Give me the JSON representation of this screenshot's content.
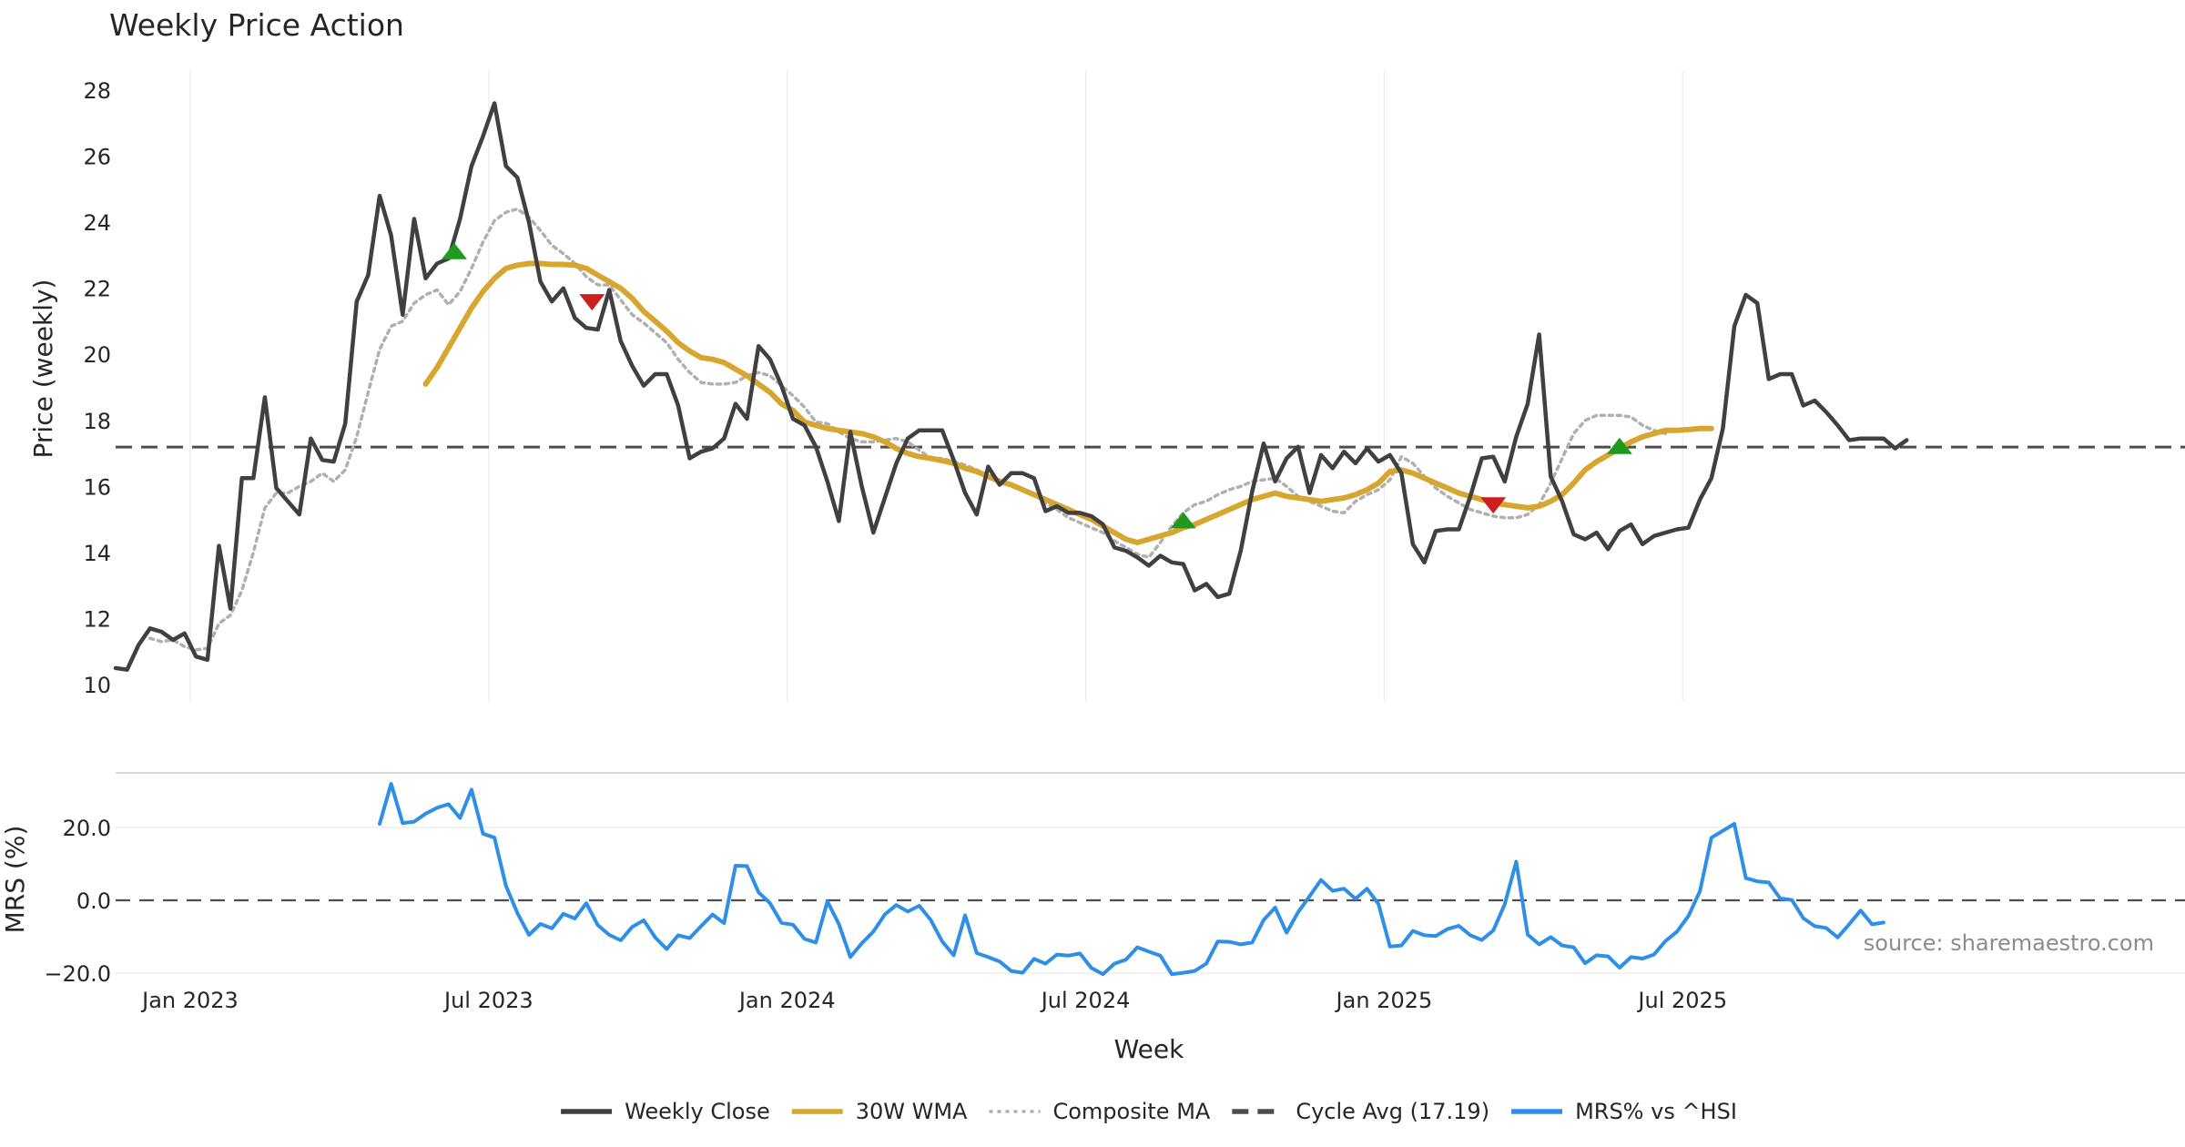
{
  "chart_data": {
    "type": "line",
    "title": "Weekly Price Action",
    "xlabel": "Week",
    "source": "source: sharemaestro.com",
    "x_ticks": [
      "Jan 2023",
      "Jul 2023",
      "Jan 2024",
      "Jul 2024",
      "Jan 2025",
      "Jul 2025"
    ],
    "price_panel": {
      "ylabel": "Price (weekly)",
      "ylim": [
        9.5,
        28.8
      ],
      "y_ticks": [
        10,
        12,
        14,
        16,
        18,
        20,
        22,
        24,
        26,
        28
      ],
      "grid": true
    },
    "mrs_panel": {
      "ylabel": "MRS (%)",
      "ylim": [
        -22,
        36
      ],
      "y_ticks": [
        20,
        0,
        -20
      ],
      "y_tick_labels": [
        "20.0",
        "0.0",
        "−20.0"
      ],
      "zero_line": 0
    },
    "legend": [
      {
        "label": "Weekly Close",
        "color": "#404040",
        "style": "solid"
      },
      {
        "label": "30W WMA",
        "color": "#d6a62e",
        "style": "solid"
      },
      {
        "label": "Composite MA",
        "color": "#b0b0b0",
        "style": "dotted"
      },
      {
        "label": "Cycle Avg (17.19)",
        "color": "#4d4d4d",
        "style": "dashed"
      },
      {
        "label": "MRS% vs ^HSI",
        "color": "#2f8fe6",
        "style": "solid"
      }
    ],
    "cycle_avg": 17.19,
    "colors": {
      "close": "#404040",
      "wma": "#d6a62e",
      "composite": "#b0b0b0",
      "cycle": "#4d4d4d",
      "mrs": "#2f8fe6",
      "buy": "#1f9a1f",
      "sell": "#cc1f1f"
    },
    "series": [
      {
        "name": "Weekly Close",
        "start_week": 0,
        "values": [
          10.5,
          10.45,
          11.2,
          11.7,
          11.6,
          11.35,
          11.55,
          10.85,
          10.75,
          14.2,
          12.3,
          16.25,
          16.25,
          18.7,
          15.95,
          15.55,
          15.15,
          17.45,
          16.8,
          16.75,
          17.9,
          21.6,
          22.4,
          24.8,
          23.6,
          21.2,
          24.1,
          22.3,
          22.75,
          22.9,
          24.1,
          25.7,
          26.6,
          27.6,
          25.7,
          25.35,
          24.0,
          22.2,
          21.6,
          22.0,
          21.1,
          20.8,
          20.75,
          21.95,
          20.4,
          19.65,
          19.05,
          19.4,
          19.4,
          18.45,
          16.85,
          17.05,
          17.15,
          17.45,
          18.5,
          18.05,
          20.25,
          19.85,
          19.05,
          18.05,
          17.85,
          17.2,
          16.15,
          14.95,
          17.65,
          16.0,
          14.6,
          15.65,
          16.7,
          17.45,
          17.7,
          17.7,
          17.7,
          16.8,
          15.8,
          15.15,
          16.6,
          16.05,
          16.4,
          16.4,
          16.25,
          15.25,
          15.4,
          15.2,
          15.2,
          15.1,
          14.85,
          14.15,
          14.05,
          13.85,
          13.6,
          13.9,
          13.7,
          13.65,
          12.85,
          13.05,
          12.65,
          12.75,
          14.05,
          15.85,
          17.3,
          16.15,
          16.85,
          17.2,
          15.8,
          16.95,
          16.55,
          17.05,
          16.7,
          17.15,
          16.75,
          16.95,
          16.4,
          14.25,
          13.7,
          14.65,
          14.7,
          14.7,
          15.7,
          16.85,
          16.9,
          16.15,
          17.5,
          18.5,
          20.6,
          16.3,
          15.55,
          14.55,
          14.4,
          14.6,
          14.1,
          14.65,
          14.85,
          14.25,
          14.5,
          14.6,
          14.7,
          14.75,
          15.6,
          16.25,
          17.75,
          20.85,
          21.8,
          21.55,
          19.25,
          19.4,
          19.4,
          18.45,
          18.6,
          18.25,
          17.85,
          17.4,
          17.45,
          17.45,
          17.45,
          17.15,
          17.4
        ]
      },
      {
        "name": "30W WMA",
        "start_week": 27,
        "values": [
          19.1,
          19.6,
          20.2,
          20.8,
          21.4,
          21.9,
          22.3,
          22.6,
          22.7,
          22.75,
          22.75,
          22.72,
          22.72,
          22.7,
          22.6,
          22.4,
          22.2,
          22.0,
          21.7,
          21.3,
          21.0,
          20.7,
          20.35,
          20.1,
          19.9,
          19.85,
          19.75,
          19.55,
          19.35,
          19.1,
          18.85,
          18.5,
          18.3,
          17.95,
          17.85,
          17.75,
          17.7,
          17.65,
          17.6,
          17.5,
          17.35,
          17.15,
          17.0,
          16.9,
          16.85,
          16.78,
          16.7,
          16.55,
          16.45,
          16.3,
          16.15,
          16.05,
          15.9,
          15.75,
          15.6,
          15.45,
          15.3,
          15.15,
          15.0,
          14.8,
          14.6,
          14.4,
          14.3,
          14.4,
          14.5,
          14.6,
          14.75,
          14.85,
          15.0,
          15.15,
          15.3,
          15.45,
          15.6,
          15.7,
          15.8,
          15.7,
          15.65,
          15.6,
          15.55,
          15.6,
          15.65,
          15.75,
          15.9,
          16.1,
          16.45,
          16.5,
          16.4,
          16.25,
          16.1,
          15.95,
          15.8,
          15.7,
          15.6,
          15.5,
          15.45,
          15.4,
          15.35,
          15.4,
          15.55,
          15.75,
          16.1,
          16.5,
          16.75,
          16.95,
          17.15,
          17.35,
          17.5,
          17.6,
          17.7,
          17.7,
          17.72,
          17.75,
          17.75
        ]
      },
      {
        "name": "Composite MA",
        "start_week": 3,
        "values": [
          11.4,
          11.3,
          11.35,
          11.15,
          11.05,
          11.1,
          11.85,
          12.1,
          12.85,
          14.0,
          15.35,
          15.8,
          15.8,
          16.0,
          16.15,
          16.4,
          16.15,
          16.5,
          17.5,
          18.85,
          20.15,
          20.85,
          21.0,
          21.55,
          21.8,
          21.95,
          21.5,
          21.9,
          22.6,
          23.4,
          24.05,
          24.3,
          24.4,
          24.15,
          23.75,
          23.3,
          23.05,
          22.75,
          22.35,
          22.1,
          22.1,
          21.65,
          21.2,
          20.95,
          20.65,
          20.35,
          19.85,
          19.45,
          19.15,
          19.1,
          19.1,
          19.15,
          19.35,
          19.45,
          19.35,
          19.05,
          18.75,
          18.4,
          17.95,
          17.9,
          17.65,
          17.45,
          17.35,
          17.35,
          17.4,
          17.45,
          17.35,
          17.1,
          16.85,
          16.85,
          16.75,
          16.65,
          16.5,
          16.35,
          16.2,
          16.0,
          15.9,
          15.75,
          15.5,
          15.3,
          15.05,
          14.9,
          14.75,
          14.6,
          14.35,
          14.15,
          13.95,
          13.85,
          14.3,
          14.8,
          15.2,
          15.45,
          15.55,
          15.75,
          15.9,
          16.0,
          16.15,
          16.2,
          16.25,
          16.0,
          15.7,
          15.55,
          15.4,
          15.25,
          15.2,
          15.55,
          15.75,
          15.9,
          16.2,
          16.9,
          16.7,
          16.3,
          15.95,
          15.7,
          15.5,
          15.3,
          15.2,
          15.1,
          15.05,
          15.05,
          15.15,
          15.45,
          16.1,
          16.85,
          17.6,
          18.0,
          18.15,
          18.15,
          18.15,
          18.1,
          17.85,
          17.7,
          17.6
        ]
      },
      {
        "name": "MRS% vs ^HSI",
        "start_week": 23,
        "values": [
          21,
          32,
          21.2,
          21.6,
          23.8,
          25.4,
          26.4,
          22.6,
          30.4,
          18.3,
          17.2,
          4,
          -3.5,
          -9.5,
          -6.5,
          -7.7,
          -3.7,
          -5,
          -0.8,
          -6.8,
          -9.5,
          -11,
          -7.3,
          -5.5,
          -10.2,
          -13.4,
          -9.6,
          -10.4,
          -7.1,
          -3.9,
          -6.3,
          9.5,
          9.4,
          2.2,
          -0.8,
          -6.2,
          -6.7,
          -10.6,
          -11.6,
          -0.3,
          -6.5,
          -15.6,
          -11.8,
          -8.6,
          -3.9,
          -1.3,
          -3.1,
          -1.5,
          -5.4,
          -11.3,
          -15.1,
          -4.1,
          -14.5,
          -15.6,
          -16.8,
          -19.4,
          -19.9,
          -16.1,
          -17.4,
          -14.9,
          -15.2,
          -14.6,
          -18.6,
          -20.3,
          -17.4,
          -16.3,
          -12.9,
          -14.1,
          -15.2,
          -20.3,
          -19.9,
          -19.4,
          -17.4,
          -11.3,
          -11.4,
          -12.1,
          -11.6,
          -5.4,
          -2,
          -8.9,
          -3.3,
          1.1,
          5.6,
          2.6,
          3.2,
          0.4,
          3.2,
          -1,
          -12.7,
          -12.4,
          -8.4,
          -9.6,
          -9.8,
          -7.9,
          -7,
          -9.6,
          -10.9,
          -8.3,
          -1.1,
          10.6,
          -9.4,
          -12.1,
          -10.1,
          -12.4,
          -12.9,
          -17.3,
          -15.1,
          -15.4,
          -18.5,
          -15.6,
          -16,
          -14.9,
          -11.2,
          -8.6,
          -4.3,
          2.5,
          17.2,
          19.1,
          21,
          6.1,
          5.2,
          4.9,
          0.5,
          0.1,
          -4.9,
          -7.1,
          -7.6,
          -10.2,
          -6.6,
          -2.8,
          -6.6,
          -6.1
        ]
      }
    ],
    "signals": [
      {
        "week": 29.5,
        "price": 23.1,
        "type": "buy"
      },
      {
        "week": 41.5,
        "price": 21.6,
        "type": "sell"
      },
      {
        "week": 93,
        "price": 14.95,
        "type": "buy"
      },
      {
        "week": 120,
        "price": 15.45,
        "type": "sell"
      },
      {
        "week": 131,
        "price": 17.2,
        "type": "buy"
      }
    ]
  }
}
